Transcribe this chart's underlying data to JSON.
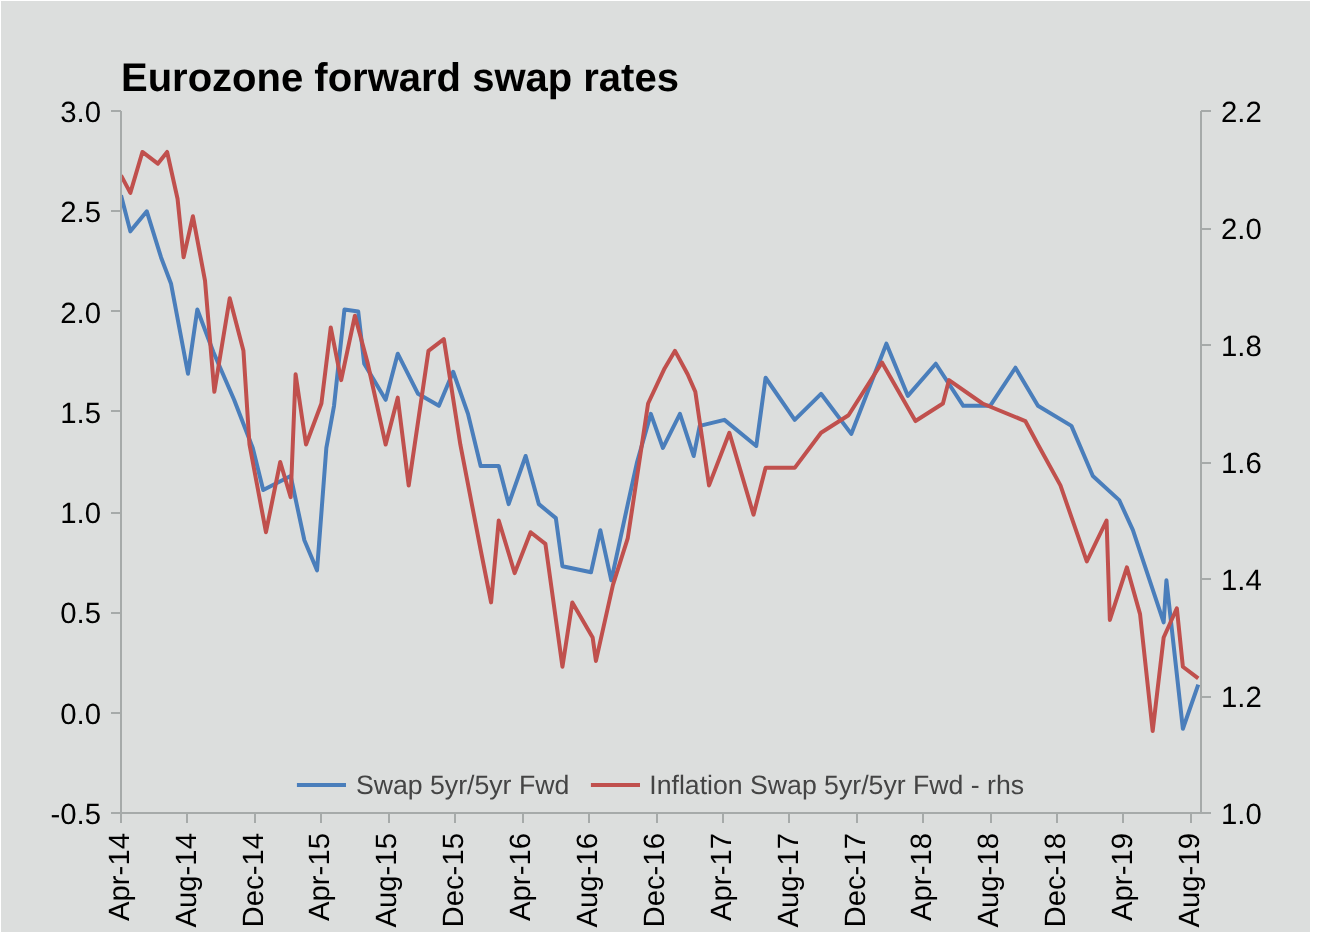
{
  "chart_data": {
    "type": "line",
    "title": "Eurozone forward swap rates",
    "xlim": [
      "2014-04-01",
      "2019-08-20"
    ],
    "xticks": [
      {
        "value": "2014-04-01",
        "label": "Apr-14"
      },
      {
        "value": "2014-08-01",
        "label": "Aug-14"
      },
      {
        "value": "2014-12-01",
        "label": "Dec-14"
      },
      {
        "value": "2015-04-01",
        "label": "Apr-15"
      },
      {
        "value": "2015-08-01",
        "label": "Aug-15"
      },
      {
        "value": "2015-12-01",
        "label": "Dec-15"
      },
      {
        "value": "2016-04-01",
        "label": "Apr-16"
      },
      {
        "value": "2016-08-01",
        "label": "Aug-16"
      },
      {
        "value": "2016-12-01",
        "label": "Dec-16"
      },
      {
        "value": "2017-04-01",
        "label": "Apr-17"
      },
      {
        "value": "2017-08-01",
        "label": "Aug-17"
      },
      {
        "value": "2017-12-01",
        "label": "Dec-17"
      },
      {
        "value": "2018-04-01",
        "label": "Apr-18"
      },
      {
        "value": "2018-08-01",
        "label": "Aug-18"
      },
      {
        "value": "2018-12-01",
        "label": "Dec-18"
      },
      {
        "value": "2019-04-01",
        "label": "Apr-19"
      },
      {
        "value": "2019-08-01",
        "label": "Aug-19"
      }
    ],
    "ylim": [
      -0.5,
      3.0
    ],
    "yticks": [
      {
        "value": -0.5,
        "label": "-0.5"
      },
      {
        "value": 0,
        "label": "0.0"
      },
      {
        "value": 0.5,
        "label": "0.5"
      },
      {
        "value": 1,
        "label": "1.0"
      },
      {
        "value": 1.5,
        "label": "1.5"
      },
      {
        "value": 2,
        "label": "2.0"
      },
      {
        "value": 2.5,
        "label": "2.5"
      },
      {
        "value": 3,
        "label": "3.0"
      }
    ],
    "y2lim": [
      1.0,
      2.2
    ],
    "y2ticks": [
      {
        "value": 1.0,
        "label": "1.0"
      },
      {
        "value": 1.2,
        "label": "1.2"
      },
      {
        "value": 1.4,
        "label": "1.4"
      },
      {
        "value": 1.6,
        "label": "1.6"
      },
      {
        "value": 1.8,
        "label": "1.8"
      },
      {
        "value": 2.0,
        "label": "2.0"
      },
      {
        "value": 2.2,
        "label": "2.2"
      }
    ],
    "grid": false,
    "legend": "bottom",
    "line_style": "solid",
    "series": [
      {
        "name": "Swap 5yr/5yr Fwd",
        "color": "#4a7ebb",
        "x": [
          "2014-04-01",
          "2014-04-18",
          "2014-05-18",
          "2014-06-13",
          "2014-07-01",
          "2014-08-01",
          "2014-08-18",
          "2014-09-16",
          "2014-10-24",
          "2014-11-27",
          "2014-12-16",
          "2015-02-04",
          "2015-03-01",
          "2015-03-24",
          "2015-04-10",
          "2015-04-24",
          "2015-05-13",
          "2015-06-07",
          "2015-06-18",
          "2015-07-27",
          "2015-08-18",
          "2015-09-24",
          "2015-11-01",
          "2015-11-27",
          "2015-12-24",
          "2016-01-16",
          "2016-02-18",
          "2016-03-07",
          "2016-04-07",
          "2016-05-01",
          "2016-06-01",
          "2016-06-13",
          "2016-08-04",
          "2016-08-21",
          "2016-09-10",
          "2016-10-10",
          "2016-10-27",
          "2016-11-21",
          "2016-12-13",
          "2017-01-13",
          "2017-02-07",
          "2017-02-18",
          "2017-04-04",
          "2017-06-01",
          "2017-06-18",
          "2017-08-10",
          "2017-09-27",
          "2017-11-21",
          "2018-01-24",
          "2018-03-04",
          "2018-04-24",
          "2018-06-13",
          "2018-08-01",
          "2018-09-16",
          "2018-10-27",
          "2018-12-27",
          "2019-02-04",
          "2019-03-24",
          "2019-04-18",
          "2019-06-13",
          "2019-06-18",
          "2019-07-18",
          "2019-08-15"
        ],
        "values": [
          2.58,
          2.4,
          2.5,
          2.27,
          2.14,
          1.69,
          2.01,
          1.8,
          1.56,
          1.32,
          1.11,
          1.18,
          0.86,
          0.71,
          1.32,
          1.53,
          2.01,
          2.0,
          1.74,
          1.56,
          1.79,
          1.59,
          1.53,
          1.7,
          1.49,
          1.23,
          1.23,
          1.04,
          1.28,
          1.04,
          0.97,
          0.73,
          0.7,
          0.91,
          0.66,
          1.04,
          1.25,
          1.49,
          1.32,
          1.49,
          1.28,
          1.43,
          1.46,
          1.33,
          1.67,
          1.46,
          1.59,
          1.39,
          1.84,
          1.58,
          1.74,
          1.53,
          1.53,
          1.72,
          1.53,
          1.43,
          1.18,
          1.06,
          0.91,
          0.45,
          0.66,
          -0.08,
          0.14
        ]
      },
      {
        "name": "Inflation Swap 5yr/5yr Fwd - rhs",
        "color": "#c0504d",
        "axis": "y2",
        "x": [
          "2014-04-01",
          "2014-04-18",
          "2014-05-10",
          "2014-06-07",
          "2014-06-24",
          "2014-07-13",
          "2014-07-24",
          "2014-08-10",
          "2014-09-01",
          "2014-09-18",
          "2014-10-16",
          "2014-11-10",
          "2014-11-21",
          "2014-12-21",
          "2015-01-16",
          "2015-02-04",
          "2015-02-13",
          "2015-03-04",
          "2015-04-01",
          "2015-04-18",
          "2015-05-07",
          "2015-06-01",
          "2015-06-24",
          "2015-07-27",
          "2015-08-18",
          "2015-09-07",
          "2015-10-13",
          "2015-11-10",
          "2015-12-10",
          "2016-01-16",
          "2016-02-04",
          "2016-02-18",
          "2016-03-18",
          "2016-04-16",
          "2016-05-13",
          "2016-06-13",
          "2016-07-01",
          "2016-08-07",
          "2016-08-13",
          "2016-09-13",
          "2016-10-10",
          "2016-11-16",
          "2016-12-16",
          "2017-01-04",
          "2017-01-27",
          "2017-02-10",
          "2017-03-07",
          "2017-04-13",
          "2017-05-27",
          "2017-06-18",
          "2017-08-10",
          "2017-09-27",
          "2017-11-16",
          "2018-01-16",
          "2018-03-18",
          "2018-05-07",
          "2018-05-18",
          "2018-07-18",
          "2018-10-04",
          "2018-10-27",
          "2018-12-07",
          "2019-01-24",
          "2019-03-01",
          "2019-03-07",
          "2019-04-07",
          "2019-05-01",
          "2019-05-24",
          "2019-06-13",
          "2019-07-07",
          "2019-07-18",
          "2019-08-15"
        ],
        "values": [
          2.09,
          2.06,
          2.13,
          2.11,
          2.13,
          2.05,
          1.95,
          2.02,
          1.91,
          1.72,
          1.88,
          1.79,
          1.63,
          1.48,
          1.6,
          1.54,
          1.75,
          1.63,
          1.7,
          1.83,
          1.74,
          1.85,
          1.77,
          1.63,
          1.71,
          1.56,
          1.79,
          1.81,
          1.63,
          1.45,
          1.36,
          1.5,
          1.41,
          1.48,
          1.46,
          1.25,
          1.36,
          1.3,
          1.26,
          1.39,
          1.47,
          1.7,
          1.76,
          1.79,
          1.75,
          1.72,
          1.56,
          1.65,
          1.51,
          1.59,
          1.59,
          1.65,
          1.68,
          1.77,
          1.67,
          1.7,
          1.74,
          1.7,
          1.67,
          1.63,
          1.56,
          1.43,
          1.5,
          1.33,
          1.42,
          1.34,
          1.14,
          1.3,
          1.35,
          1.25,
          1.23
        ]
      }
    ]
  }
}
